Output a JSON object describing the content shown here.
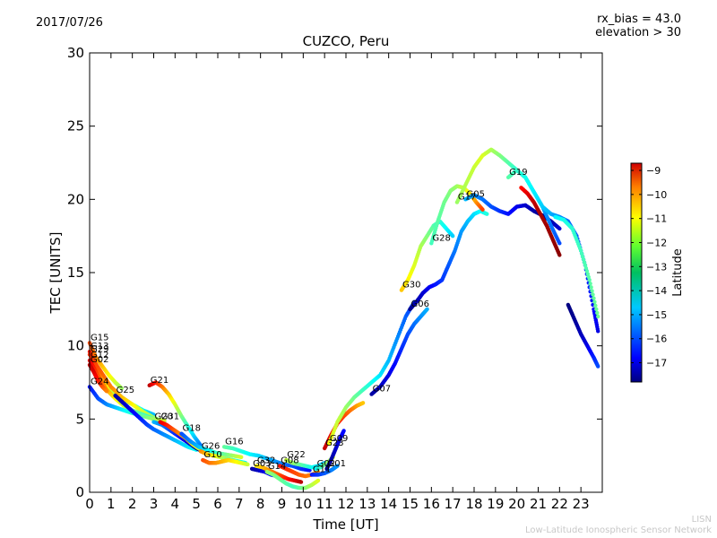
{
  "header": {
    "date": "2017/07/26",
    "rx_bias": "rx_bias = 43.0",
    "elevation": "elevation > 30"
  },
  "footer": {
    "org_short": "LISN",
    "org_full": "Low-Latitude Ionospheric Sensor Network"
  },
  "chart_data": {
    "type": "scatter",
    "title": "CUZCO, Peru",
    "xlabel": "Time [UT]",
    "ylabel": "TEC [UNITS]",
    "xlim": [
      0,
      24
    ],
    "ylim": [
      0,
      30
    ],
    "xticks": [
      0,
      1,
      2,
      3,
      4,
      5,
      6,
      7,
      8,
      9,
      10,
      11,
      12,
      13,
      14,
      15,
      16,
      17,
      18,
      19,
      20,
      21,
      22,
      23
    ],
    "yticks": [
      0,
      5,
      10,
      15,
      20,
      25,
      30
    ],
    "grid": false,
    "colorbar": {
      "label": "Latitude",
      "range": [
        -17.8,
        -8.7
      ],
      "ticks": [
        -9,
        -10,
        -11,
        -12,
        -13,
        -14,
        -15,
        -16,
        -17
      ]
    },
    "series": [
      {
        "name": "G15",
        "x": [
          0,
          0.3,
          0.6,
          0.9,
          1.2,
          1.5
        ],
        "y": [
          10.2,
          9.2,
          8.6,
          8.0,
          7.5,
          7.1
        ],
        "lat": [
          -10.5,
          -11,
          -11.5,
          -12,
          -12.5,
          -13
        ]
      },
      {
        "name": "G13",
        "x": [
          0,
          0.3,
          0.6,
          1.0,
          1.5,
          2.0,
          2.5,
          3.0
        ],
        "y": [
          9.6,
          8.7,
          7.6,
          6.9,
          6.4,
          6.0,
          5.6,
          5.3
        ],
        "lat": [
          -10,
          -10.8,
          -11.6,
          -12.5,
          -13.2,
          -13.8,
          -14.4,
          -15
        ]
      },
      {
        "name": "G29",
        "x": [
          0,
          0.5,
          1.0,
          1.5,
          2.0,
          2.5,
          3.0,
          3.5
        ],
        "y": [
          9.4,
          8.3,
          7.2,
          6.5,
          6.0,
          5.5,
          5.1,
          4.8
        ],
        "lat": [
          -10.2,
          -10.6,
          -11,
          -11.5,
          -12,
          -12.5,
          -13,
          -13.5
        ]
      },
      {
        "name": "G12",
        "x": [
          0,
          0.4,
          0.8,
          1.2,
          1.6,
          2.0,
          2.5,
          3.0,
          3.5
        ],
        "y": [
          9.0,
          8.0,
          7.0,
          6.4,
          5.9,
          5.6,
          5.3,
          5.0,
          4.9
        ],
        "lat": [
          -9.6,
          -10.5,
          -11.2,
          -12,
          -12.6,
          -13.2,
          -13.8,
          -14.4,
          -15
        ]
      },
      {
        "name": "G02",
        "x": [
          0,
          0.2,
          0.4,
          0.6,
          0.8
        ],
        "y": [
          8.7,
          8.2,
          7.6,
          7.2,
          6.9
        ],
        "lat": [
          -9.3,
          -9.5,
          -10,
          -10.5,
          -11
        ]
      },
      {
        "name": "G24",
        "x": [
          0,
          0.4,
          0.8,
          1.2,
          1.6,
          2.0,
          2.5,
          3.0,
          3.5
        ],
        "y": [
          7.2,
          6.4,
          6.0,
          5.8,
          5.6,
          5.4,
          5.2,
          5.0,
          4.9
        ],
        "lat": [
          -16.5,
          -16,
          -15.5,
          -15,
          -14.5,
          -14,
          -13.5,
          -13,
          -12.5
        ]
      },
      {
        "name": "G25",
        "x": [
          1.2,
          1.5,
          1.8,
          2.1,
          2.4,
          2.7,
          3.0,
          3.4,
          3.8,
          4.2,
          4.6,
          5.0
        ],
        "y": [
          6.6,
          6.2,
          5.8,
          5.4,
          5.0,
          4.6,
          4.3,
          4.0,
          3.7,
          3.4,
          3.1,
          2.9
        ],
        "lat": [
          -17.5,
          -17.3,
          -17,
          -16.7,
          -16.4,
          -16.1,
          -15.8,
          -15.5,
          -15.2,
          -14.9,
          -14.6,
          -14.3
        ]
      },
      {
        "name": "G21",
        "x": [
          2.8,
          3.1,
          3.4,
          3.7,
          4.0,
          4.3,
          4.6,
          4.9,
          5.2
        ],
        "y": [
          7.3,
          7.5,
          7.2,
          6.7,
          6.0,
          5.2,
          4.5,
          3.8,
          3.2
        ],
        "lat": [
          -9.2,
          -10,
          -10.8,
          -11.6,
          -12.4,
          -13.2,
          -14,
          -14.8,
          -15.6
        ]
      },
      {
        "name": "G20",
        "x": [
          3.0,
          3.4,
          3.8,
          4.2,
          4.6,
          5.0,
          5.4
        ],
        "y": [
          4.8,
          4.6,
          4.2,
          3.8,
          3.4,
          3.0,
          2.7
        ],
        "lat": [
          -15,
          -15.5,
          -16,
          -16.5,
          -17,
          -17.5,
          -17.8
        ]
      },
      {
        "name": "G31",
        "x": [
          3.3,
          3.6,
          3.9,
          4.2,
          4.5,
          4.8,
          5.1,
          5.4
        ],
        "y": [
          4.8,
          4.6,
          4.3,
          4.0,
          3.7,
          3.3,
          3.0,
          2.8
        ],
        "lat": [
          -9.5,
          -10,
          -10.5,
          -11,
          -11.5,
          -12,
          -12.5,
          -13
        ]
      },
      {
        "name": "G18",
        "x": [
          4.3,
          4.7,
          5.1,
          5.5,
          5.9,
          6.3,
          6.7,
          7.1
        ],
        "y": [
          4.0,
          3.5,
          3.1,
          2.9,
          2.7,
          2.6,
          2.5,
          2.4
        ],
        "lat": [
          -16,
          -15.5,
          -15,
          -14.5,
          -14,
          -13.5,
          -13,
          -12.5
        ]
      },
      {
        "name": "G26",
        "x": [
          5.2,
          5.5,
          5.8,
          6.1,
          6.4,
          6.7,
          7.0,
          7.3
        ],
        "y": [
          2.8,
          2.6,
          2.5,
          2.4,
          2.3,
          2.2,
          2.1,
          2.0
        ],
        "lat": [
          -11,
          -11.5,
          -12,
          -12.5,
          -13,
          -13.5,
          -14,
          -14.5
        ]
      },
      {
        "name": "G16",
        "x": [
          6.3,
          6.7,
          7.1,
          7.5,
          7.9,
          8.3,
          8.7,
          9.1,
          9.5,
          9.9,
          10.3
        ],
        "y": [
          3.1,
          3.0,
          2.8,
          2.6,
          2.5,
          2.3,
          2.1,
          1.9,
          1.8,
          1.6,
          1.5
        ],
        "lat": [
          -13.5,
          -13.8,
          -14.1,
          -14.4,
          -14.7,
          -15,
          -15.3,
          -15.6,
          -15.9,
          -16.2,
          -16.5
        ]
      },
      {
        "name": "G10",
        "x": [
          5.3,
          5.6,
          5.9,
          6.2,
          6.5,
          6.8,
          7.1,
          7.4
        ],
        "y": [
          2.2,
          2.0,
          2.0,
          2.1,
          2.2,
          2.1,
          2.0,
          1.9
        ],
        "lat": [
          -10.5,
          -10.8,
          -11.1,
          -11.4,
          -11.7,
          -12,
          -12.3,
          -12.6
        ]
      },
      {
        "name": "G03",
        "x": [
          7.6,
          7.9,
          8.2,
          8.5,
          8.8,
          9.1
        ],
        "y": [
          1.6,
          1.5,
          1.4,
          1.2,
          1.1,
          1.0
        ],
        "lat": [
          -17.5,
          -17.2,
          -16.9,
          -16.6,
          -16.3,
          -16
        ]
      },
      {
        "name": "G32",
        "x": [
          7.8,
          8.1,
          8.4,
          8.7,
          9.0,
          9.3,
          9.6,
          9.9
        ],
        "y": [
          1.8,
          1.7,
          1.5,
          1.3,
          1.1,
          0.9,
          0.8,
          0.7
        ],
        "lat": [
          -12,
          -11.6,
          -11.2,
          -10.8,
          -10.4,
          -10,
          -9.6,
          -9.2
        ]
      },
      {
        "name": "G14",
        "x": [
          8.3,
          8.6,
          8.9,
          9.2,
          9.5,
          9.8,
          10.1,
          10.4,
          10.7
        ],
        "y": [
          1.4,
          1.2,
          0.9,
          0.6,
          0.4,
          0.3,
          0.3,
          0.5,
          0.8
        ],
        "lat": [
          -13,
          -13.2,
          -13.4,
          -13.6,
          -13.8,
          -13.6,
          -13.2,
          -12.8,
          -12.4
        ]
      },
      {
        "name": "G08",
        "x": [
          8.9,
          9.2,
          9.5,
          9.8,
          10.1,
          10.4,
          10.7
        ],
        "y": [
          1.8,
          1.6,
          1.4,
          1.2,
          1.1,
          1.2,
          1.4
        ],
        "lat": [
          -10,
          -10.2,
          -10.4,
          -10.6,
          -10.8,
          -11,
          -11.2
        ]
      },
      {
        "name": "G22",
        "x": [
          9.2,
          9.5,
          9.8,
          10.1,
          10.4,
          10.7,
          11.0
        ],
        "y": [
          2.2,
          2.0,
          1.9,
          1.8,
          1.7,
          1.8,
          2.0
        ],
        "lat": [
          -12.6,
          -13,
          -13.4,
          -13.8,
          -14.2,
          -14.6,
          -15
        ]
      },
      {
        "name": "G02",
        "x": [
          10.6,
          10.8,
          11.0,
          11.2,
          11.4
        ],
        "y": [
          1.6,
          1.7,
          1.9,
          2.1,
          2.4
        ],
        "lat": [
          -14.5,
          -14,
          -13.5,
          -13,
          -12.5
        ]
      },
      {
        "name": "G11",
        "x": [
          10.4,
          10.7,
          11.0,
          11.3,
          11.6
        ],
        "y": [
          1.2,
          1.2,
          1.3,
          1.5,
          1.8
        ],
        "lat": [
          -16.5,
          -16.2,
          -15.9,
          -15.6,
          -15.3
        ]
      },
      {
        "name": "G01",
        "x": [
          11.1,
          11.3,
          11.5,
          11.7,
          11.9
        ],
        "y": [
          1.6,
          2.2,
          2.9,
          3.6,
          4.2
        ],
        "lat": [
          -17.8,
          -17.5,
          -17.2,
          -16.9,
          -16.6
        ]
      },
      {
        "name": "G23",
        "x": [
          11.0,
          11.3,
          11.6,
          11.9,
          12.2,
          12.5,
          12.8
        ],
        "y": [
          3.0,
          3.9,
          4.7,
          5.2,
          5.6,
          5.9,
          6.1
        ],
        "lat": [
          -9.3,
          -9.6,
          -10,
          -10.4,
          -10.8,
          -11.2,
          -11.6
        ]
      },
      {
        "name": "G09",
        "x": [
          11.2,
          11.6,
          12.0,
          12.4,
          12.8,
          13.2,
          13.6,
          14.0,
          14.4,
          14.8,
          15.2
        ],
        "y": [
          3.3,
          4.8,
          5.8,
          6.5,
          7.0,
          7.5,
          8.0,
          9.0,
          10.5,
          12.0,
          13.0
        ],
        "lat": [
          -12.2,
          -12.6,
          -13,
          -13.4,
          -13.8,
          -14.2,
          -14.6,
          -15,
          -15.4,
          -15.8,
          -16.2
        ]
      },
      {
        "name": "G07",
        "x": [
          13.2,
          13.6,
          14.0,
          14.3,
          14.6,
          14.9,
          15.2,
          15.5,
          15.8
        ],
        "y": [
          6.7,
          7.2,
          8.0,
          8.8,
          9.8,
          10.8,
          11.5,
          12.0,
          12.5
        ],
        "lat": [
          -17.5,
          -17.2,
          -16.9,
          -16.6,
          -16.3,
          -16,
          -15.7,
          -15.4,
          -15.1
        ]
      },
      {
        "name": "G06",
        "x": [
          15.0,
          15.3,
          15.6,
          15.9,
          16.2,
          16.5,
          16.8,
          17.1,
          17.4,
          17.7,
          18.0,
          18.3,
          18.6
        ],
        "y": [
          12.5,
          13.0,
          13.6,
          14.0,
          14.2,
          14.5,
          15.5,
          16.5,
          17.8,
          18.5,
          19.0,
          19.2,
          19.0
        ],
        "lat": [
          -17.7,
          -17.4,
          -17.1,
          -16.8,
          -16.5,
          -16.2,
          -15.9,
          -15.6,
          -15.3,
          -15,
          -14.7,
          -14.4,
          -14.1
        ]
      },
      {
        "name": "G30",
        "x": [
          14.6,
          14.9,
          15.2,
          15.5,
          15.8,
          16.1,
          16.4,
          16.7,
          17.0
        ],
        "y": [
          13.8,
          14.5,
          15.5,
          16.8,
          17.5,
          18.2,
          18.5,
          18.0,
          17.5
        ],
        "lat": [
          -11.6,
          -12,
          -12.4,
          -12.8,
          -13.2,
          -13.6,
          -14,
          -14.4,
          -14.8
        ]
      },
      {
        "name": "G28",
        "x": [
          16.0,
          16.3,
          16.6,
          16.9,
          17.2,
          17.5,
          17.8,
          18.1,
          18.4
        ],
        "y": [
          17.0,
          18.5,
          19.8,
          20.6,
          20.9,
          20.8,
          20.4,
          19.8,
          19.3
        ],
        "lat": [
          -13.8,
          -13.6,
          -13.4,
          -13.2,
          -13,
          -12.6,
          -12,
          -11.2,
          -10.4
        ]
      },
      {
        "name": "G05",
        "x": [
          17.6,
          18.0,
          18.4,
          18.8,
          19.2,
          19.6,
          20.0,
          20.4,
          20.8,
          21.2,
          21.6,
          22.0
        ],
        "y": [
          20.0,
          20.3,
          20.0,
          19.5,
          19.2,
          19.0,
          19.5,
          19.6,
          19.2,
          18.9,
          18.5,
          18.0
        ],
        "lat": [
          -15,
          -15.3,
          -15.6,
          -15.9,
          -16.2,
          -16.5,
          -16.8,
          -17.1,
          -17.4,
          -17.7,
          -17.4,
          -17.1
        ]
      },
      {
        "name": "G17",
        "x": [
          17.2,
          17.6,
          18.0,
          18.4,
          18.8,
          19.2,
          19.6,
          20.0,
          20.4,
          20.8,
          21.2,
          21.6,
          22.0
        ],
        "y": [
          19.8,
          21.0,
          22.2,
          23.0,
          23.4,
          23.0,
          22.5,
          22.0,
          21.5,
          20.5,
          19.5,
          18.2,
          17.0
        ],
        "lat": [
          -13,
          -12.8,
          -12.6,
          -12.4,
          -12.8,
          -13.2,
          -13.6,
          -14,
          -14.4,
          -14.8,
          -15.2,
          -15.6,
          -16
        ]
      },
      {
        "name": "G19",
        "x": [
          19.6,
          20.0,
          20.4,
          20.8,
          21.2,
          21.6,
          22.0,
          22.4,
          22.8,
          23.2,
          23.6,
          23.8
        ],
        "y": [
          21.5,
          22.0,
          21.5,
          20.5,
          19.5,
          19.0,
          18.8,
          18.5,
          17.5,
          15.5,
          12.5,
          11.0
        ],
        "lat": [
          -13.6,
          -13.9,
          -14.2,
          -14.5,
          -14.8,
          -15.1,
          -15.4,
          -15.7,
          -16,
          -16.3,
          -16.6,
          -16.9
        ]
      },
      {
        "name": "",
        "x": [
          20.2,
          20.5,
          20.8,
          21.1,
          21.4,
          21.7,
          22.0
        ],
        "y": [
          20.8,
          20.4,
          19.8,
          19.0,
          18.2,
          17.2,
          16.2
        ],
        "lat": [
          -10,
          -9.6,
          -9.3,
          -9.1,
          -9,
          -8.9,
          -8.8
        ]
      },
      {
        "name": "",
        "x": [
          22.4,
          22.7,
          23.0,
          23.3,
          23.6,
          23.8
        ],
        "y": [
          12.8,
          11.8,
          10.8,
          10.0,
          9.2,
          8.6
        ],
        "lat": [
          -17.8,
          -17.6,
          -17.3,
          -16.9,
          -16.4,
          -16
        ]
      },
      {
        "name": "",
        "x": [
          21.8,
          22.2,
          22.6,
          23.0,
          23.4,
          23.8
        ],
        "y": [
          18.8,
          18.6,
          18.0,
          16.5,
          14.5,
          12.0
        ],
        "lat": [
          -14.5,
          -14.2,
          -14,
          -13.8,
          -13.6,
          -13.4
        ]
      }
    ]
  }
}
